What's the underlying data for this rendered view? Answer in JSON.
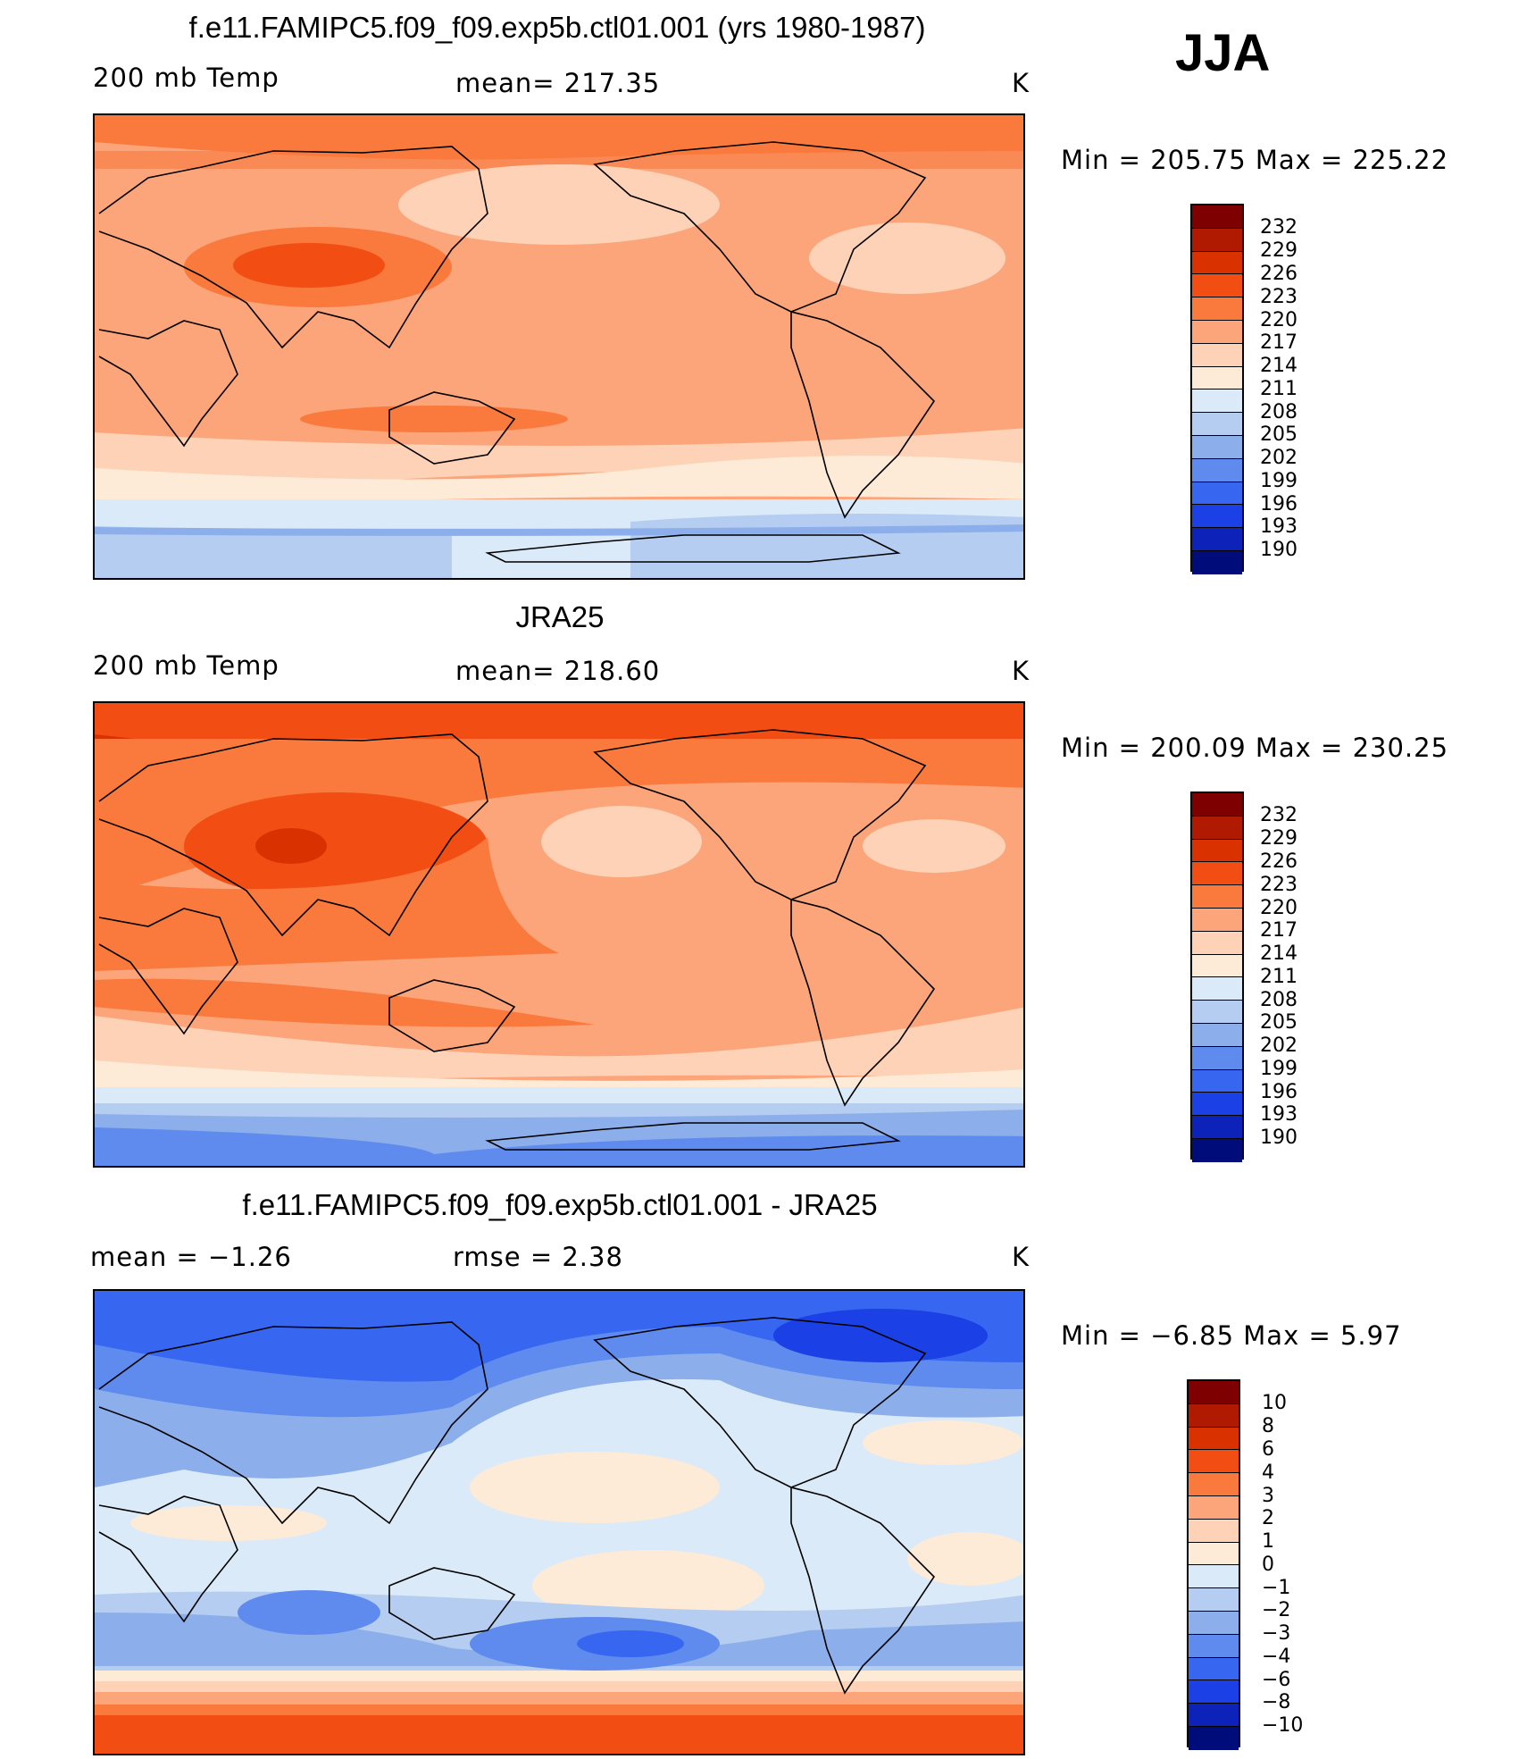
{
  "season": "JJA",
  "panels": [
    {
      "title": "f.e11.FAMIPC5.f09_f09.exp5b.ctl01.001 (yrs 1980-1987)",
      "left_label": "200 mb Temp",
      "center_label": "mean= 217.35",
      "units": "K",
      "minmax": "Min = 205.75 Max = 225.22",
      "colorbar_labels": [
        "232",
        "229",
        "226",
        "223",
        "220",
        "217",
        "214",
        "211",
        "208",
        "205",
        "202",
        "199",
        "196",
        "193",
        "190"
      ]
    },
    {
      "title": "JRA25",
      "left_label": "200 mb Temp",
      "center_label": "mean= 218.60",
      "units": "K",
      "minmax": "Min = 200.09 Max = 230.25",
      "colorbar_labels": [
        "232",
        "229",
        "226",
        "223",
        "220",
        "217",
        "214",
        "211",
        "208",
        "205",
        "202",
        "199",
        "196",
        "193",
        "190"
      ]
    },
    {
      "title": "f.e11.FAMIPC5.f09_f09.exp5b.ctl01.001 - JRA25",
      "left_label": "mean =   −1.26",
      "center_label": "rmse =    2.38",
      "units": "K",
      "minmax": "Min =   −6.85 Max =     5.97",
      "colorbar_labels": [
        "10",
        "8",
        "6",
        "4",
        "3",
        "2",
        "1",
        "0",
        "−1",
        "−2",
        "−3",
        "−4",
        "−6",
        "−8",
        "−10"
      ]
    }
  ],
  "colors": {
    "palette": [
      "#7f0000",
      "#b01a00",
      "#d93200",
      "#f24d12",
      "#f97a3c",
      "#fca47a",
      "#fdd2b6",
      "#fdebd8",
      "#dbeaf8",
      "#b4cdf0",
      "#8caeea",
      "#5f8aee",
      "#3766f0",
      "#1a40e6",
      "#0c22b8",
      "#000c7a"
    ]
  }
}
